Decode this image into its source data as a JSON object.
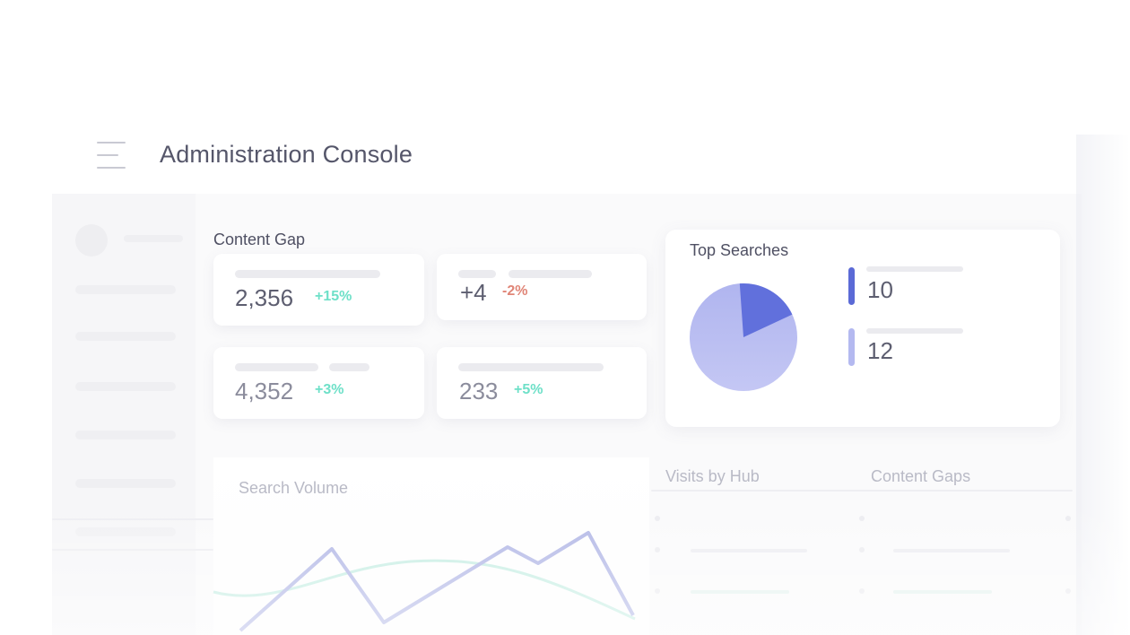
{
  "header": {
    "menu_icon": "hamburger-menu-icon",
    "title": "Administration Console"
  },
  "content_gap": {
    "title": "Content Gap",
    "stats": [
      {
        "value": "2,356",
        "change": "+15%",
        "trend": "positive"
      },
      {
        "value": "+4",
        "change": "-2%",
        "trend": "negative"
      },
      {
        "value": "4,352",
        "change": "+3%",
        "trend": "positive"
      },
      {
        "value": "233",
        "change": "+5%",
        "trend": "positive"
      }
    ]
  },
  "top_searches": {
    "title": "Top Searches",
    "legend": [
      {
        "value": "10",
        "color": "#5b6ad6"
      },
      {
        "value": "12",
        "color": "#b4b9f0"
      }
    ]
  },
  "bottom": {
    "search_volume_title": "Search Volume",
    "visits_by_hub_title": "Visits by Hub",
    "content_gaps_title": "Content Gaps"
  },
  "colors": {
    "positive": "#6ee0c8",
    "negative": "#e08577",
    "series_primary": "#b3b8e6",
    "series_secondary": "#c8eee4"
  }
}
